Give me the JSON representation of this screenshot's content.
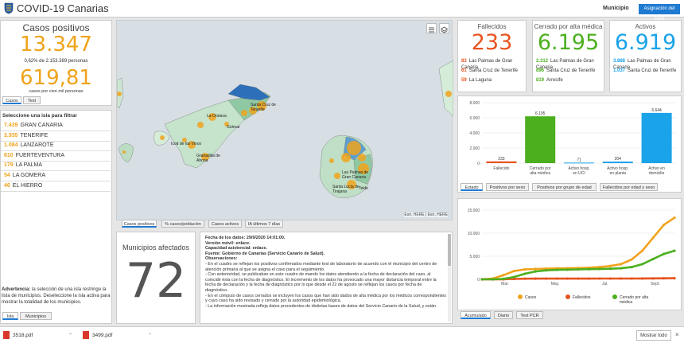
{
  "header": {
    "title": "COVID-19 Canarias",
    "municipio_label": "Municipio",
    "assign_button": "Asignación del caso"
  },
  "cases": {
    "title": "Casos positivos",
    "total": "13.347",
    "percent_text": "0,62% de 2.153.389 personas",
    "rate": "619,81",
    "rate_text": "casos por cien mil personas",
    "tabs": [
      "Casos",
      "Test"
    ]
  },
  "islands": {
    "heading": "Seleccione una isla para filtrar",
    "items": [
      {
        "value": "7.439",
        "name": "GRAN CANARIA"
      },
      {
        "value": "3.935",
        "name": "TENERIFE"
      },
      {
        "value": "1.084",
        "name": "LANZAROTE"
      },
      {
        "value": "610",
        "name": "FUERTEVENTURA"
      },
      {
        "value": "179",
        "name": "LA PALMA"
      },
      {
        "value": "54",
        "name": "LA GOMERA"
      },
      {
        "value": "46",
        "name": "EL HIERRO"
      }
    ],
    "warning_bold": "Advertencia:",
    "warning_text": " la selección de una isla restringe la lista de municipios. Deseleccione la isla activa para mostrar la totalidad de los municipios.",
    "tabs": [
      "Isla",
      "Municipios"
    ]
  },
  "map": {
    "tabs": [
      "Casos positivos",
      "% casos/población",
      "Casos activos",
      "IA últimos 7 días"
    ],
    "attribution": "Esri, HERE | Esri, HERE",
    "labels": [
      "Santa Cruz de Tenerife",
      "La Orotava",
      "Granadilla de Abona",
      "Santa Lucía de Tirajana",
      "Las Palmas de Gran Canaria",
      "Telde",
      "Güímar",
      "Icod de los Vinos"
    ]
  },
  "municipios": {
    "title": "Municipios afectados",
    "value": "72"
  },
  "info": {
    "lines": [
      "Fecha de los datos: 29/9/2020 14:01:00.",
      "Versión móvil: enlace.",
      "Capacidad asistencial: enlace.",
      "Fuente: Gobierno de Canarias (Servicio Canario de Salud).",
      "Observaciones:",
      "- En el cuadro se reflejan los positivos confirmados mediante test de laboratorio de acuerdo con el municipio del centro de",
      "atención primaria al que se asigna el caso para el seguimiento.",
      "- Con anterioridad, se publicaban en este cuadro de mando los datos atendiendo a la fecha de declaración del caso, al",
      "coincidir ésta con la fecha de diagnóstico. El incremento de los datos ha provocado una mayor distancia temporal entre la",
      "fecha de declaración y la fecha de diagnóstico por lo que desde el 22 de agosto se reflejan los casos por fecha de",
      "diagnóstico.",
      "- En el cómputo de casos cerrados se incluyen los casos que han sido dados de alta médica por los médicos correspondientes",
      "y cuyo caso ha sido revisado y cerrado por la autoridad epidemiológica.",
      "- La información mostrada refleja datos procedentes de distintas bases de datos del Servicio Canario de la Salud, y están"
    ]
  },
  "stats": [
    {
      "title": "Fallecidos",
      "value": "233",
      "color": "#e8541e",
      "rows": [
        {
          "v": "83",
          "n": "Las Palmas de Gran Canaria"
        },
        {
          "v": "61",
          "n": "Santa Cruz de Tenerife"
        },
        {
          "v": "59",
          "n": "La Laguna"
        }
      ]
    },
    {
      "title": "Cerrado por alta médica",
      "value": "6.195",
      "color": "#4caf1e",
      "rows": [
        {
          "v": "2.312",
          "n": "Las Palmas de Gran Canaria"
        },
        {
          "v": "896",
          "n": "Santa Cruz de Tenerife"
        },
        {
          "v": "819",
          "n": "Arrecife"
        }
      ]
    },
    {
      "title": "Activos",
      "value": "6.919",
      "color": "#1aa3e8",
      "rows": [
        {
          "v": "3.888",
          "n": "Las Palmas de Gran Canaria"
        },
        {
          "v": "1.037",
          "n": "Santa Cruz de Tenerife"
        }
      ]
    }
  ],
  "bar_tabs": [
    "Estado",
    "Positivos por sexo",
    "Positivos por grupo de edad",
    "Fallecidos por edad y sexo"
  ],
  "line_tabs": [
    "Acumulado",
    "Diario",
    "Test PCR"
  ],
  "footer": {
    "downloads": [
      "3518.pdf",
      "3499.pdf"
    ],
    "show_all": "Mostrar todo"
  },
  "chart_data": [
    {
      "type": "bar",
      "categories": [
        "Fallecido",
        "Cerrado por alta médica",
        "Activo hosp. en UCI",
        "Activo hosp. en planta",
        "Activo en domicilio"
      ],
      "values": [
        233,
        6195,
        71,
        204,
        6644
      ],
      "value_labels": [
        "233",
        "6.195",
        "71",
        "204",
        "6.644"
      ],
      "colors": [
        "#e8541e",
        "#4caf1e",
        "#1aa3e8",
        "#1aa3e8",
        "#1aa3e8"
      ],
      "ylim": [
        0,
        8000
      ],
      "yticks": [
        0,
        2000,
        4000,
        6000,
        8000
      ],
      "grid": true
    },
    {
      "type": "line",
      "x_ticks": [
        "Mar.",
        "May.",
        "Jul.",
        "Sept."
      ],
      "yticks": [
        "0",
        "5.000",
        "10.000",
        "15.000"
      ],
      "ylim": [
        0,
        15000
      ],
      "x": [
        0,
        1,
        2,
        3,
        4,
        5,
        6,
        7,
        8,
        9,
        10,
        11,
        12,
        13,
        14,
        15,
        16,
        17,
        18
      ],
      "series": [
        {
          "name": "Casos",
          "color": "#f0a31c",
          "values": [
            0,
            150,
            900,
            1800,
            2150,
            2250,
            2320,
            2370,
            2400,
            2450,
            2520,
            2650,
            2900,
            3300,
            4300,
            6200,
            9000,
            11800,
            13347
          ]
        },
        {
          "name": "Fallecidos",
          "color": "#e8541e",
          "values": [
            0,
            0,
            20,
            80,
            140,
            155,
            160,
            162,
            163,
            163,
            163,
            164,
            165,
            168,
            172,
            182,
            200,
            220,
            233
          ]
        },
        {
          "name": "Cerrado por alta médica",
          "color": "#4caf1e",
          "values": [
            0,
            0,
            100,
            500,
            1200,
            1700,
            1950,
            2050,
            2100,
            2150,
            2200,
            2250,
            2300,
            2400,
            2650,
            3300,
            4400,
            5500,
            6195
          ]
        }
      ],
      "legend_position": "bottom"
    }
  ]
}
